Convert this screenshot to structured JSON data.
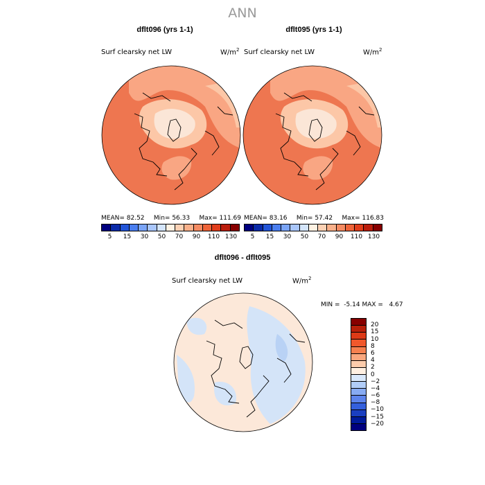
{
  "suptitle": "ANN",
  "panels": [
    {
      "title": "dflt096 (yrs 1-1)",
      "variable": "Surf clearsky net LW",
      "units_base": "W/m",
      "units_exp": "2",
      "stats": {
        "mean_label": "MEAN=",
        "mean": "82.52",
        "min_label": "Min=",
        "min": "56.33",
        "max_label": "Max=",
        "max": "111.69"
      }
    },
    {
      "title": "dflt095 (yrs 1-1)",
      "variable": "Surf clearsky net LW",
      "units_base": "W/m",
      "units_exp": "2",
      "stats": {
        "mean_label": "MEAN=",
        "mean": "83.16",
        "min_label": "Min=",
        "min": "57.42",
        "max_label": "Max=",
        "max": "116.83"
      }
    }
  ],
  "colorbar_top": {
    "colors": [
      "#00007f",
      "#0a2aa8",
      "#2255d8",
      "#4a7eef",
      "#7aa4f6",
      "#a9c6fb",
      "#d4e5fb",
      "#fff2e3",
      "#fcd1b4",
      "#f9b08a",
      "#f58b62",
      "#ef6439",
      "#e13d1b",
      "#bb1d0c",
      "#870000"
    ],
    "ticks": [
      "5",
      "15",
      "30",
      "50",
      "70",
      "90",
      "110",
      "130"
    ]
  },
  "diff_panel": {
    "title": "dflt096 - dflt095",
    "variable": "Surf clearsky net LW",
    "units_base": "W/m",
    "units_exp": "2",
    "stats": {
      "min_label": "MIN =",
      "min": "-5.14",
      "max_label": "MAX =",
      "max": "4.67"
    }
  },
  "colorbar_diff": {
    "colors": [
      "#870000",
      "#b8200a",
      "#dd3a17",
      "#f0582c",
      "#f5804f",
      "#f9a77e",
      "#fcccac",
      "#fff0e2",
      "#d9e8fb",
      "#b1cdf8",
      "#87abf3",
      "#5d84ec",
      "#3460dd",
      "#1a3fc0",
      "#001b9a",
      "#00007f"
    ],
    "labels": [
      "20",
      "15",
      "10",
      "8",
      "6",
      "4",
      "2",
      "0",
      "−2",
      "−4",
      "−6",
      "−8",
      "−10",
      "−15",
      "−20"
    ]
  },
  "map_palette": {
    "ocean_warm": "#ee7650",
    "mid": "#f9a683",
    "light": "#fcc7a7",
    "arctic": "#fbe6d7",
    "diff_base": "#fce8d9",
    "diff_blue": "#d4e4f8",
    "diff_blue2": "#b9d2f5",
    "coast": "#000000"
  }
}
